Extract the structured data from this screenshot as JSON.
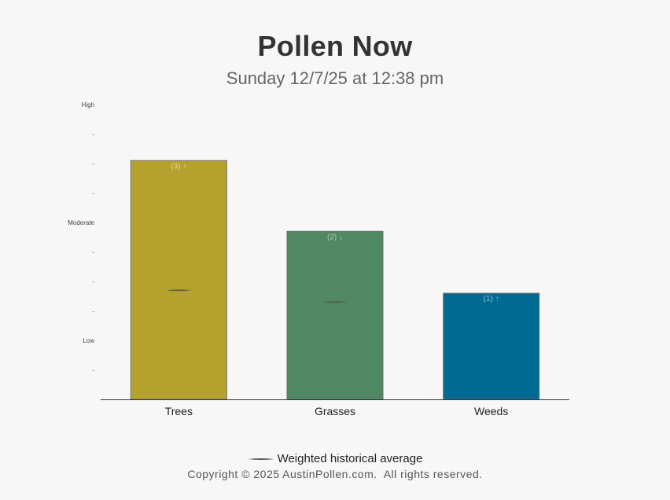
{
  "header": {
    "title": "Pollen Now",
    "subtitle": "Sunday 12/7/25 at 12:38 pm"
  },
  "chart_data": {
    "type": "bar",
    "categories": [
      "Trees",
      "Grasses",
      "Weeds"
    ],
    "values": [
      8.1,
      5.7,
      3.6
    ],
    "value_labels": [
      "(3) ↑",
      "(2) ↓",
      "(1) ↑"
    ],
    "historical_average": [
      3.7,
      3.3,
      null
    ],
    "colors": [
      "#b5a22e",
      "#4f8862",
      "#006a92"
    ],
    "ylim": [
      0,
      10
    ],
    "y_tick_labels": [
      {
        "value": 10,
        "label": "High"
      },
      {
        "value": 9,
        "label": "-"
      },
      {
        "value": 8,
        "label": "-"
      },
      {
        "value": 7,
        "label": "-"
      },
      {
        "value": 6,
        "label": "Moderate"
      },
      {
        "value": 5,
        "label": "-"
      },
      {
        "value": 4,
        "label": "-"
      },
      {
        "value": 3,
        "label": "-"
      },
      {
        "value": 2,
        "label": "Low"
      },
      {
        "value": 1,
        "label": "-"
      }
    ],
    "legend": {
      "label": "Weighted historical average",
      "position": "bottom"
    },
    "grid": false
  },
  "footer": {
    "copyright": "Copyright © 2025 AustinPollen.com.  All rights reserved."
  }
}
